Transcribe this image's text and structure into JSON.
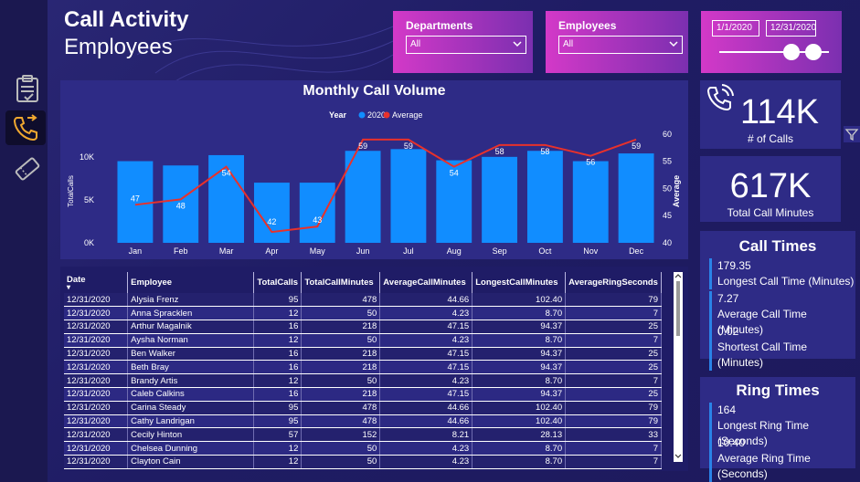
{
  "header": {
    "title": "Call Activity",
    "subtitle": "Employees"
  },
  "sidebar": {
    "items": [
      {
        "icon": "clipboard-icon"
      },
      {
        "icon": "phone-forward-icon"
      },
      {
        "icon": "ticket-icon"
      }
    ]
  },
  "filters": {
    "departments": {
      "label": "Departments",
      "value": "All"
    },
    "employees": {
      "label": "Employees",
      "value": "All"
    },
    "date": {
      "start": "1/1/2020",
      "end": "12/31/2020"
    }
  },
  "kpis": {
    "calls": {
      "value": "114K",
      "label": "# of Calls"
    },
    "minutes": {
      "value": "617K",
      "label": "Total Call Minutes"
    }
  },
  "call_times": {
    "title": "Call Times",
    "items": [
      {
        "value": "179.35",
        "label": "Longest Call Time (Minutes)"
      },
      {
        "value": "7.27",
        "label": "Average Call Time (Minutes)"
      },
      {
        "value": "0.02",
        "label": "Shortest Call Time (Minutes)"
      }
    ]
  },
  "ring_times": {
    "title": "Ring Times",
    "items": [
      {
        "value": "164",
        "label": "Longest Ring Time (Seconds)"
      },
      {
        "value": "10.40",
        "label": "Average Ring Time (Seconds)"
      }
    ]
  },
  "colors": {
    "bar": "#118dff",
    "line": "#e8312b",
    "accent": "#2a83e8"
  },
  "chart_data": {
    "type": "bar",
    "title": "Monthly Call Volume",
    "legend_title": "Year",
    "legend_position": "top",
    "categories": [
      "Jan",
      "Feb",
      "Mar",
      "Apr",
      "May",
      "Jun",
      "Jul",
      "Aug",
      "Sep",
      "Oct",
      "Nov",
      "Dec"
    ],
    "series": [
      {
        "name": "2020",
        "type": "bar",
        "values": [
          9500,
          9000,
          10200,
          7000,
          7000,
          10700,
          10900,
          9600,
          10000,
          10700,
          9500,
          10400
        ]
      },
      {
        "name": "Average",
        "type": "line",
        "axis": "right",
        "values": [
          47,
          48,
          54,
          42,
          43,
          59,
          59,
          54,
          58,
          58,
          56,
          59
        ]
      }
    ],
    "ylabel": "TotalCalls",
    "y2label": "Average",
    "ylim": [
      0,
      12000
    ],
    "yticks": [
      0,
      5000,
      10000
    ],
    "ytick_labels": [
      "0K",
      "5K",
      "10K"
    ],
    "y2lim": [
      40,
      62
    ],
    "y2ticks": [
      40,
      45,
      50,
      55,
      60
    ]
  },
  "table": {
    "columns": [
      "Date",
      "Employee",
      "TotalCalls",
      "TotalCallMinutes",
      "AverageCallMinutes",
      "LongestCallMinutes",
      "AverageRingSeconds"
    ],
    "rows": [
      [
        "12/31/2020",
        "Alysia Frenz",
        "95",
        "478",
        "44.66",
        "102.40",
        "79"
      ],
      [
        "12/31/2020",
        "Anna Spracklen",
        "12",
        "50",
        "4.23",
        "8.70",
        "7"
      ],
      [
        "12/31/2020",
        "Arthur Magalnik",
        "16",
        "218",
        "47.15",
        "94.37",
        "25"
      ],
      [
        "12/31/2020",
        "Aysha Norman",
        "12",
        "50",
        "4.23",
        "8.70",
        "7"
      ],
      [
        "12/31/2020",
        "Ben Walker",
        "16",
        "218",
        "47.15",
        "94.37",
        "25"
      ],
      [
        "12/31/2020",
        "Beth Bray",
        "16",
        "218",
        "47.15",
        "94.37",
        "25"
      ],
      [
        "12/31/2020",
        "Brandy Artis",
        "12",
        "50",
        "4.23",
        "8.70",
        "7"
      ],
      [
        "12/31/2020",
        "Caleb Calkins",
        "16",
        "218",
        "47.15",
        "94.37",
        "25"
      ],
      [
        "12/31/2020",
        "Carina Steady",
        "95",
        "478",
        "44.66",
        "102.40",
        "79"
      ],
      [
        "12/31/2020",
        "Cathy Landrigan",
        "95",
        "478",
        "44.66",
        "102.40",
        "79"
      ],
      [
        "12/31/2020",
        "Cecily Hinton",
        "57",
        "152",
        "8.21",
        "28.13",
        "33"
      ],
      [
        "12/31/2020",
        "Chelsea Dunning",
        "12",
        "50",
        "4.23",
        "8.70",
        "7"
      ],
      [
        "12/31/2020",
        "Clayton Cain",
        "12",
        "50",
        "4.23",
        "8.70",
        "7"
      ]
    ]
  }
}
